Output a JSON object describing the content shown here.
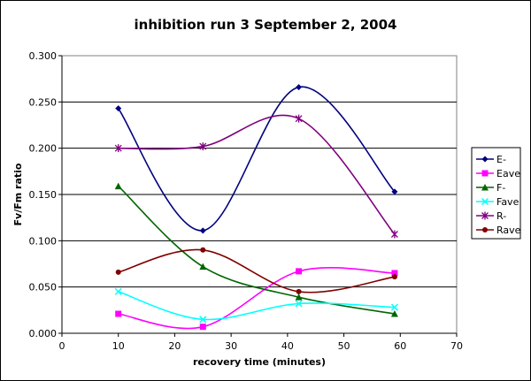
{
  "chart_data": {
    "type": "scatter",
    "title": "inhibition run 3 September 2, 2004",
    "xlabel": "recovery time (minutes)",
    "ylabel": "Fv/Fm ratio",
    "xlim": [
      0,
      70
    ],
    "ylim": [
      0,
      0.3
    ],
    "xticks": [
      "0",
      "10",
      "20",
      "30",
      "40",
      "50",
      "60",
      "70"
    ],
    "yticks": [
      "0.000",
      "0.050",
      "0.100",
      "0.150",
      "0.200",
      "0.250",
      "0.300"
    ],
    "grid": "horizontal",
    "legend_position": "right",
    "series": [
      {
        "name": "E-",
        "color": "#000080",
        "marker": "diamond",
        "x": [
          10,
          25,
          42,
          59
        ],
        "y": [
          0.243,
          0.111,
          0.266,
          0.153
        ]
      },
      {
        "name": "Eave",
        "color": "#ff00ff",
        "marker": "square",
        "x": [
          10,
          25,
          42,
          59
        ],
        "y": [
          0.021,
          0.007,
          0.067,
          0.065
        ]
      },
      {
        "name": "F-",
        "color": "#006600",
        "marker": "triangle",
        "x": [
          10,
          25,
          42,
          59
        ],
        "y": [
          0.159,
          0.072,
          0.039,
          0.021
        ]
      },
      {
        "name": "Fave",
        "color": "#00ffff",
        "marker": "x",
        "x": [
          10,
          25,
          42,
          59
        ],
        "y": [
          0.045,
          0.015,
          0.032,
          0.028
        ]
      },
      {
        "name": "R-",
        "color": "#800080",
        "marker": "star",
        "x": [
          10,
          25,
          42,
          59
        ],
        "y": [
          0.2,
          0.202,
          0.232,
          0.107
        ]
      },
      {
        "name": "Rave",
        "color": "#800000",
        "marker": "circle",
        "x": [
          10,
          25,
          42,
          59
        ],
        "y": [
          0.066,
          0.09,
          0.045,
          0.061
        ]
      }
    ]
  }
}
